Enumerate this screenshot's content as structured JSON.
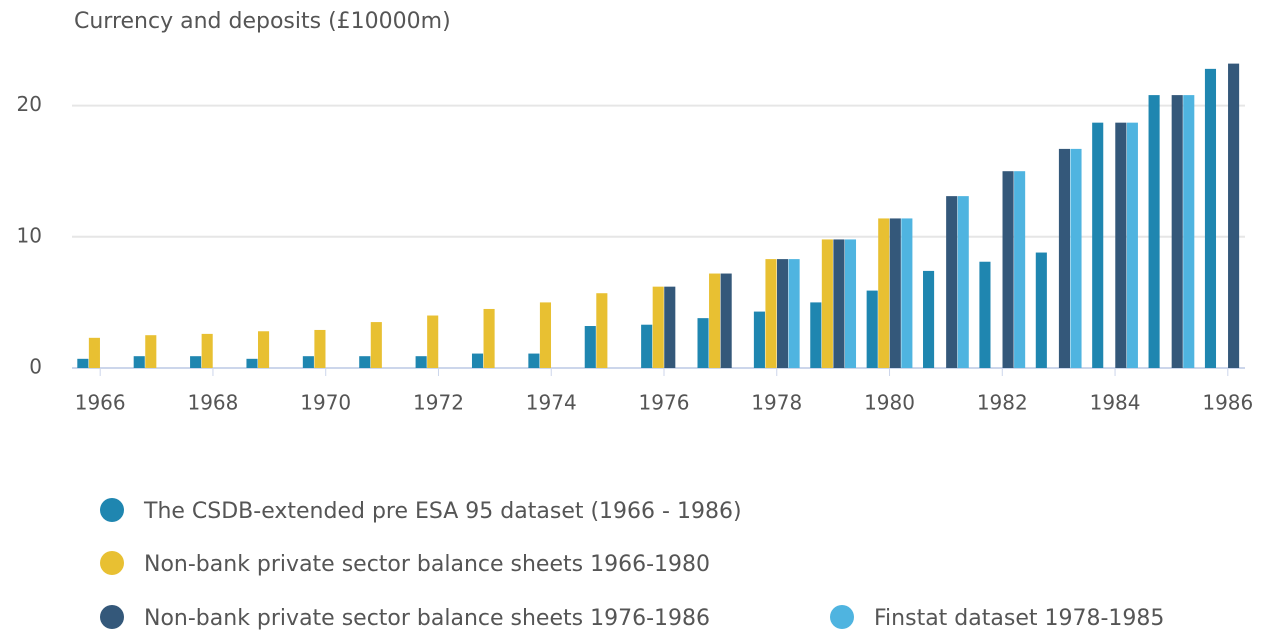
{
  "chart_data": {
    "type": "bar",
    "title": "Currency and deposits (£10000m)",
    "x": [
      1966,
      1967,
      1968,
      1969,
      1970,
      1971,
      1972,
      1973,
      1974,
      1975,
      1976,
      1977,
      1978,
      1979,
      1980,
      1981,
      1982,
      1983,
      1984,
      1985,
      1986
    ],
    "xlim": [
      1965.5,
      1986.5
    ],
    "xticks": [
      1966,
      1968,
      1970,
      1972,
      1974,
      1976,
      1978,
      1980,
      1982,
      1984,
      1986
    ],
    "ylim": [
      0,
      25
    ],
    "yticks": [
      0,
      10,
      20
    ],
    "grid": true,
    "legend": "bottom",
    "series": [
      {
        "name": "The CSDB-extended pre ESA 95 dataset (1966 - 1986)",
        "color": "#1f86b0",
        "values": [
          0.7,
          0.9,
          0.9,
          0.7,
          0.9,
          0.9,
          0.9,
          1.1,
          1.1,
          3.2,
          3.3,
          3.8,
          4.3,
          5.0,
          5.9,
          7.4,
          8.1,
          8.8,
          18.7,
          20.8,
          22.8
        ]
      },
      {
        "name": "Non-bank private sector balance sheets 1966-1980",
        "color": "#e8c032",
        "values": [
          2.3,
          2.5,
          2.6,
          2.8,
          2.9,
          3.5,
          4.0,
          4.5,
          5.0,
          5.7,
          6.2,
          7.2,
          8.3,
          9.8,
          11.4,
          null,
          null,
          null,
          null,
          null,
          null
        ]
      },
      {
        "name": "Non-bank private sector balance sheets 1976-1986",
        "color": "#34587a",
        "values": [
          null,
          null,
          null,
          null,
          null,
          null,
          null,
          null,
          null,
          null,
          6.2,
          7.2,
          8.3,
          9.8,
          11.4,
          13.1,
          15.0,
          16.7,
          18.7,
          20.8,
          23.2
        ]
      },
      {
        "name": "Finstat dataset 1978-1985",
        "color": "#4fb4e0",
        "values": [
          null,
          null,
          null,
          null,
          null,
          null,
          null,
          null,
          null,
          null,
          null,
          null,
          8.3,
          9.8,
          11.4,
          13.1,
          15.0,
          16.7,
          18.7,
          20.8,
          null
        ]
      }
    ]
  }
}
